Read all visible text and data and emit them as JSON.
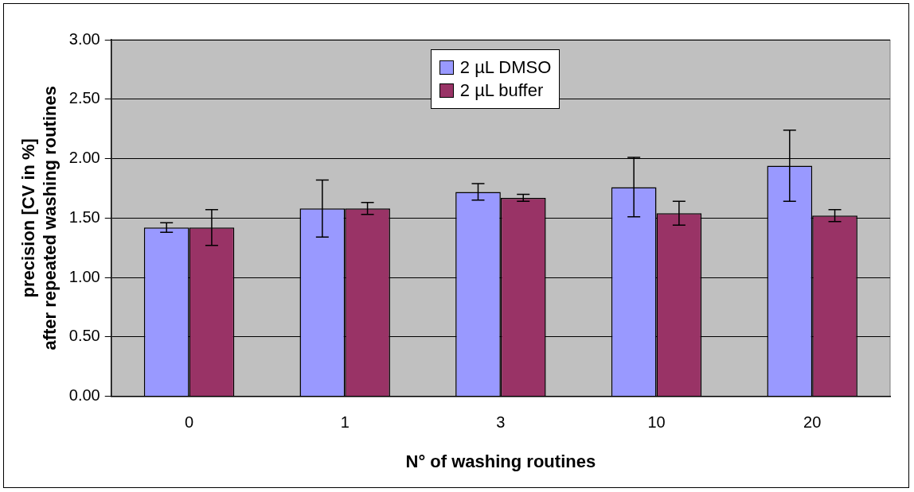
{
  "chart_data": {
    "type": "bar",
    "xlabel": "N° of washing routines",
    "ylabel": "precision [CV in %]\nafter repeated washing routines",
    "categories": [
      "0",
      "1",
      "3",
      "10",
      "20"
    ],
    "series": [
      {
        "name": "2 µL DMSO",
        "color": "#9999ff",
        "values": [
          1.42,
          1.58,
          1.72,
          1.76,
          1.94
        ],
        "errors": [
          0.04,
          0.24,
          0.07,
          0.25,
          0.3
        ]
      },
      {
        "name": "2 µL buffer",
        "color": "#993366",
        "values": [
          1.42,
          1.58,
          1.67,
          1.54,
          1.52
        ],
        "errors": [
          0.15,
          0.05,
          0.03,
          0.1,
          0.05
        ]
      }
    ],
    "ylim": [
      0,
      3
    ],
    "yticks": [
      {
        "value": 0,
        "label": "0.00"
      },
      {
        "value": 0.5,
        "label": "0.50"
      },
      {
        "value": 1,
        "label": "1.00"
      },
      {
        "value": 1.5,
        "label": "1.50"
      },
      {
        "value": 2,
        "label": "2.00"
      },
      {
        "value": 2.5,
        "label": "2.50"
      },
      {
        "value": 3,
        "label": "3.00"
      }
    ],
    "grid": "y",
    "legend": "top"
  }
}
